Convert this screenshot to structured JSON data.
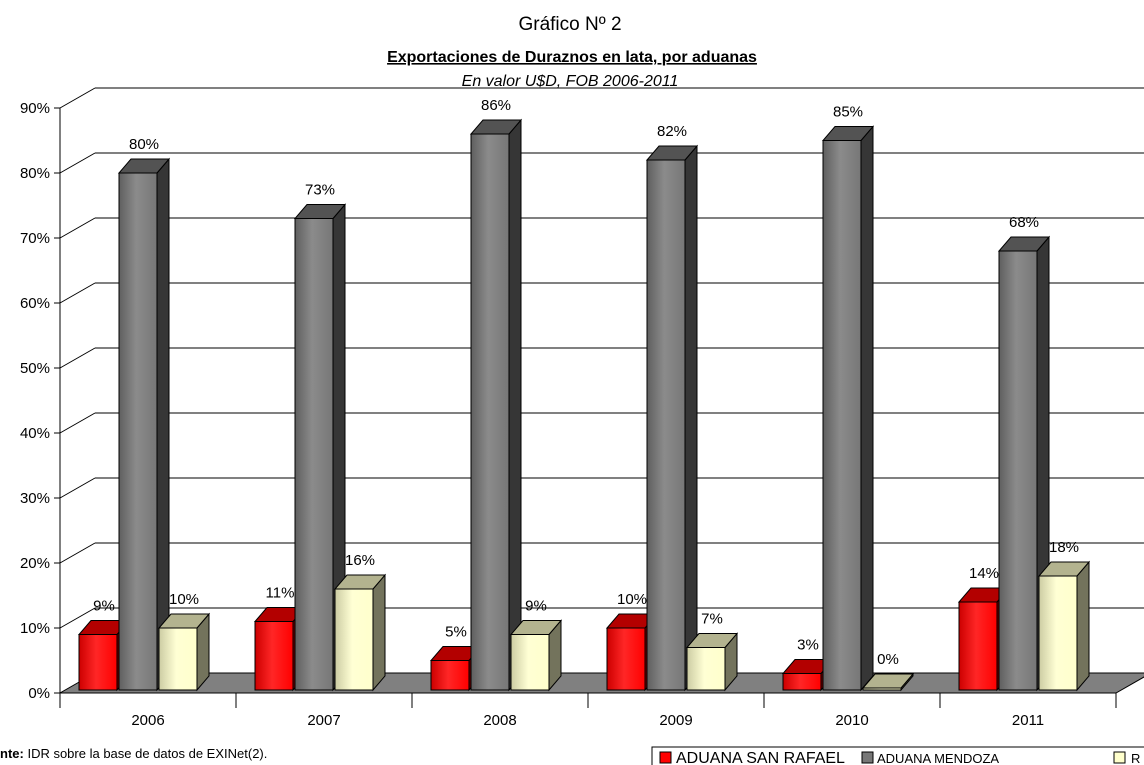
{
  "chart_data": {
    "type": "bar",
    "title": "Gráfico Nº 2",
    "subtitle": "Exportaciones de Duraznos en lata, por aduanas",
    "subtitle2": "En valor U$D, FOB 2006-2011",
    "categories": [
      "2006",
      "2007",
      "2008",
      "2009",
      "2010",
      "2011"
    ],
    "series": [
      {
        "name": "ADUANA SAN RAFAEL",
        "values": [
          9,
          11,
          5,
          10,
          3,
          14
        ],
        "labels": [
          "9%",
          "11%",
          "5%",
          "10%",
          "3%",
          "14%"
        ]
      },
      {
        "name": "ADUANA MENDOZA",
        "values": [
          80,
          73,
          86,
          82,
          85,
          68
        ],
        "labels": [
          "80%",
          "73%",
          "86%",
          "82%",
          "85%",
          "68%"
        ]
      },
      {
        "name": "R",
        "values": [
          10,
          16,
          9,
          7,
          0,
          18
        ],
        "labels": [
          "10%",
          "16%",
          "9%",
          "7%",
          "0%",
          "18%"
        ]
      }
    ],
    "colors": {
      "ADUANA SAN RAFAEL": "#ff0000",
      "ADUANA MENDOZA": "#777777",
      "R": "#ffffcc"
    },
    "y_ticks": [
      "0%",
      "10%",
      "20%",
      "30%",
      "40%",
      "50%",
      "60%",
      "70%",
      "80%",
      "90%"
    ],
    "ylim": [
      0,
      90
    ],
    "grid": true,
    "legend_position": "bottom-right"
  },
  "source": {
    "label": "nte:",
    "text": " IDR sobre la base de datos de EXINet(2)."
  }
}
